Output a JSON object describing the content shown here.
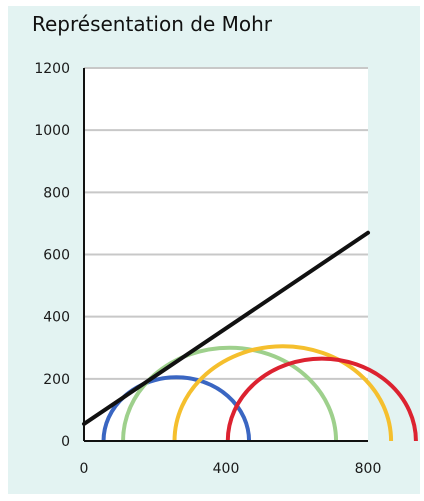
{
  "chart_data": {
    "type": "line",
    "title": "Représentation de Mohr",
    "xlabel": "",
    "ylabel": "",
    "xlim": [
      0,
      800
    ],
    "ylim": [
      0,
      1200
    ],
    "xticks": [
      0,
      400,
      800
    ],
    "yticks": [
      0,
      200,
      400,
      600,
      800,
      1000,
      1200
    ],
    "grid": "horizontal",
    "colors": {
      "background": "#e3f3f2",
      "plot_bg": "#ffffff",
      "grid": "#c8c8c8",
      "blue": "#3a66c2",
      "green": "#9ed08c",
      "orange": "#f5bf2d",
      "red": "#dc2230",
      "envelope": "#111111"
    },
    "circles": [
      {
        "color_key": "blue",
        "center": 260,
        "radius": 205
      },
      {
        "color_key": "green",
        "center": 410,
        "radius": 300
      },
      {
        "color_key": "orange",
        "center": 560,
        "radius": 305
      },
      {
        "color_key": "red",
        "center": 670,
        "radius": 265
      }
    ],
    "envelope": {
      "color_key": "envelope",
      "x": [
        0,
        800
      ],
      "y": [
        55,
        670
      ]
    }
  }
}
